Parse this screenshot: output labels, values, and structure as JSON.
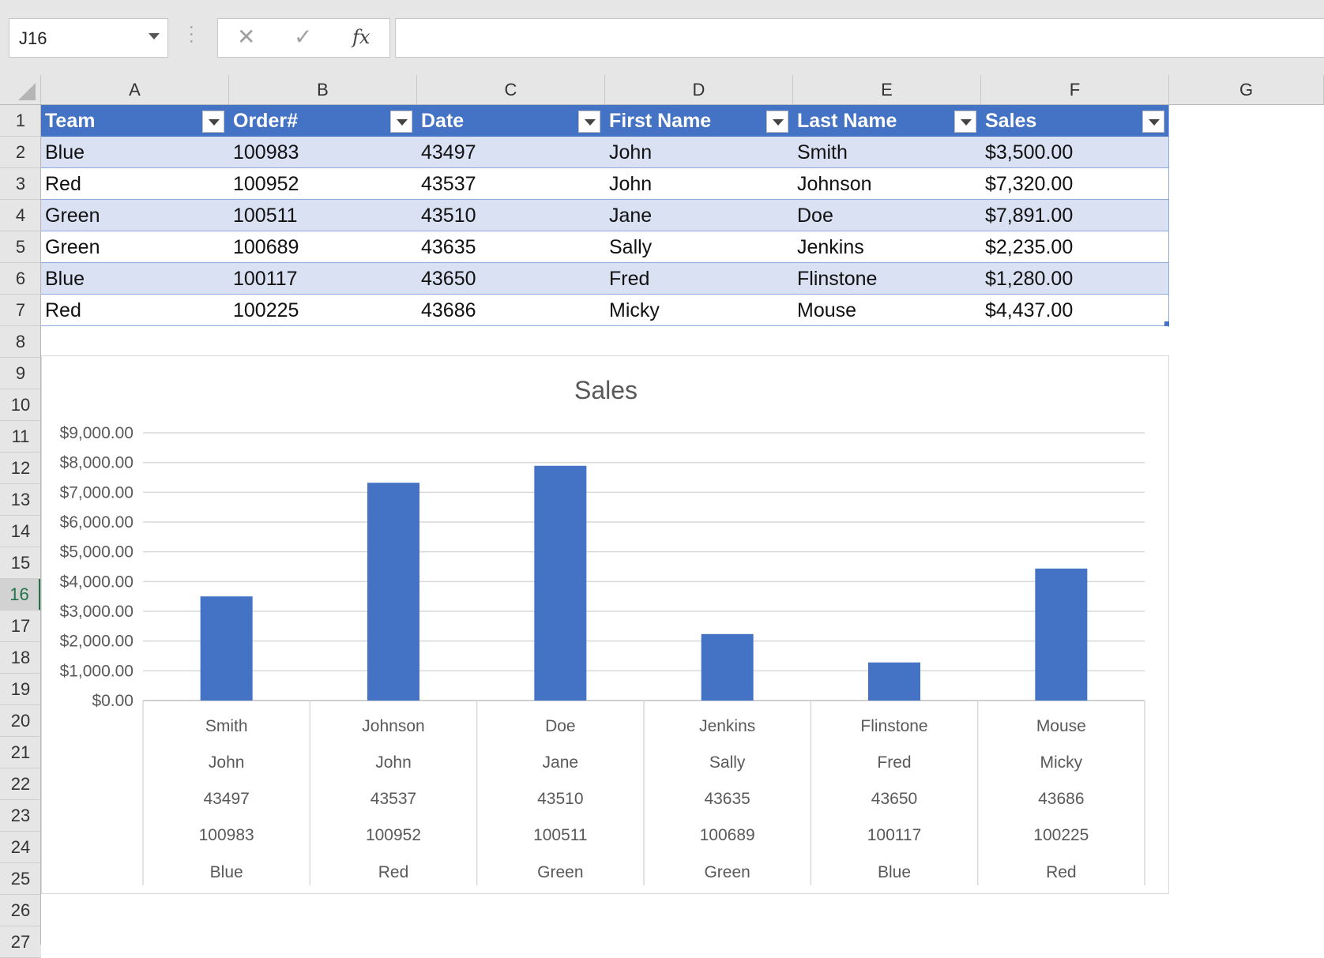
{
  "name_box": {
    "value": "J16"
  },
  "formula_bar": {
    "cancel_glyph": "✕",
    "enter_glyph": "✓",
    "fx_glyph": "fx",
    "value": ""
  },
  "columns": [
    "A",
    "B",
    "C",
    "D",
    "E",
    "F",
    "G"
  ],
  "rows": [
    "1",
    "2",
    "3",
    "4",
    "5",
    "6",
    "7",
    "8",
    "9",
    "10",
    "11",
    "12",
    "13",
    "14",
    "15",
    "16",
    "17",
    "18",
    "19",
    "20",
    "21",
    "22",
    "23",
    "24",
    "25",
    "26",
    "27"
  ],
  "active_row": "16",
  "table": {
    "headers": [
      "Team",
      "Order#",
      "Date",
      "First Name",
      "Last Name",
      "Sales"
    ],
    "rows": [
      [
        "Blue",
        "100983",
        "43497",
        "John",
        "Smith",
        "$3,500.00"
      ],
      [
        "Red",
        "100952",
        "43537",
        "John",
        "Johnson",
        "$7,320.00"
      ],
      [
        "Green",
        "100511",
        "43510",
        "Jane",
        "Doe",
        "$7,891.00"
      ],
      [
        "Green",
        "100689",
        "43635",
        "Sally",
        "Jenkins",
        "$2,235.00"
      ],
      [
        "Blue",
        "100117",
        "43650",
        "Fred",
        "Flinstone",
        "$1,280.00"
      ],
      [
        "Red",
        "100225",
        "43686",
        "Micky",
        "Mouse",
        "$4,437.00"
      ]
    ],
    "header_color": "#4472c4",
    "band_color": "#d9e1f2"
  },
  "chart_data": {
    "type": "bar",
    "title": "Sales",
    "xlabel": "",
    "ylabel": "",
    "ylim": [
      0,
      9000
    ],
    "y_ticks": [
      "$0.00",
      "$1,000.00",
      "$2,000.00",
      "$3,000.00",
      "$4,000.00",
      "$5,000.00",
      "$6,000.00",
      "$7,000.00",
      "$8,000.00",
      "$9,000.00"
    ],
    "category_levels": [
      [
        "Smith",
        "Johnson",
        "Doe",
        "Jenkins",
        "Flinstone",
        "Mouse"
      ],
      [
        "John",
        "John",
        "Jane",
        "Sally",
        "Fred",
        "Micky"
      ],
      [
        "43497",
        "43537",
        "43510",
        "43635",
        "43650",
        "43686"
      ],
      [
        "100983",
        "100952",
        "100511",
        "100689",
        "100117",
        "100225"
      ],
      [
        "Blue",
        "Red",
        "Green",
        "Green",
        "Blue",
        "Red"
      ]
    ],
    "values": [
      3500,
      7320,
      7891,
      2235,
      1280,
      4437
    ],
    "bar_color": "#4472c4",
    "grid": true,
    "legend": "none"
  }
}
